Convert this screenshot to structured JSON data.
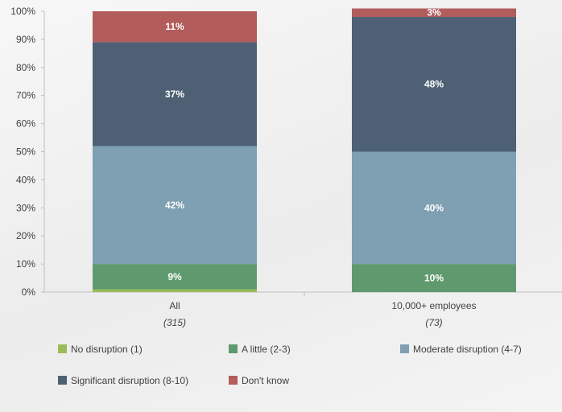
{
  "chart_data": {
    "type": "bar",
    "stacked": true,
    "title": "",
    "xlabel": "",
    "ylabel": "",
    "ylim": [
      0,
      100
    ],
    "yticks": [
      "0%",
      "10%",
      "20%",
      "30%",
      "40%",
      "50%",
      "60%",
      "70%",
      "80%",
      "90%",
      "100%"
    ],
    "categories": [
      "All",
      "10,000+ employees"
    ],
    "category_subtitles": [
      "(315)",
      "(73)"
    ],
    "series": [
      {
        "name": "No disruption (1)",
        "color": "#9bbb59",
        "values": [
          1,
          0
        ],
        "labels": [
          "",
          ""
        ]
      },
      {
        "name": "A little (2-3)",
        "color": "#5f9a6e",
        "values": [
          9,
          10
        ],
        "labels": [
          "9%",
          "10%"
        ]
      },
      {
        "name": "Moderate disruption (4-7)",
        "color": "#7f9fb2",
        "values": [
          42,
          40
        ],
        "labels": [
          "42%",
          "40%"
        ]
      },
      {
        "name": "Significant disruption (8-10)",
        "color": "#4e6174",
        "values": [
          37,
          48
        ],
        "labels": [
          "37%",
          "48%"
        ]
      },
      {
        "name": "Don't know",
        "color": "#b25c5c",
        "values": [
          11,
          3
        ],
        "labels": [
          "11%",
          "3%"
        ]
      }
    ],
    "legend_position": "bottom",
    "grid": false
  }
}
